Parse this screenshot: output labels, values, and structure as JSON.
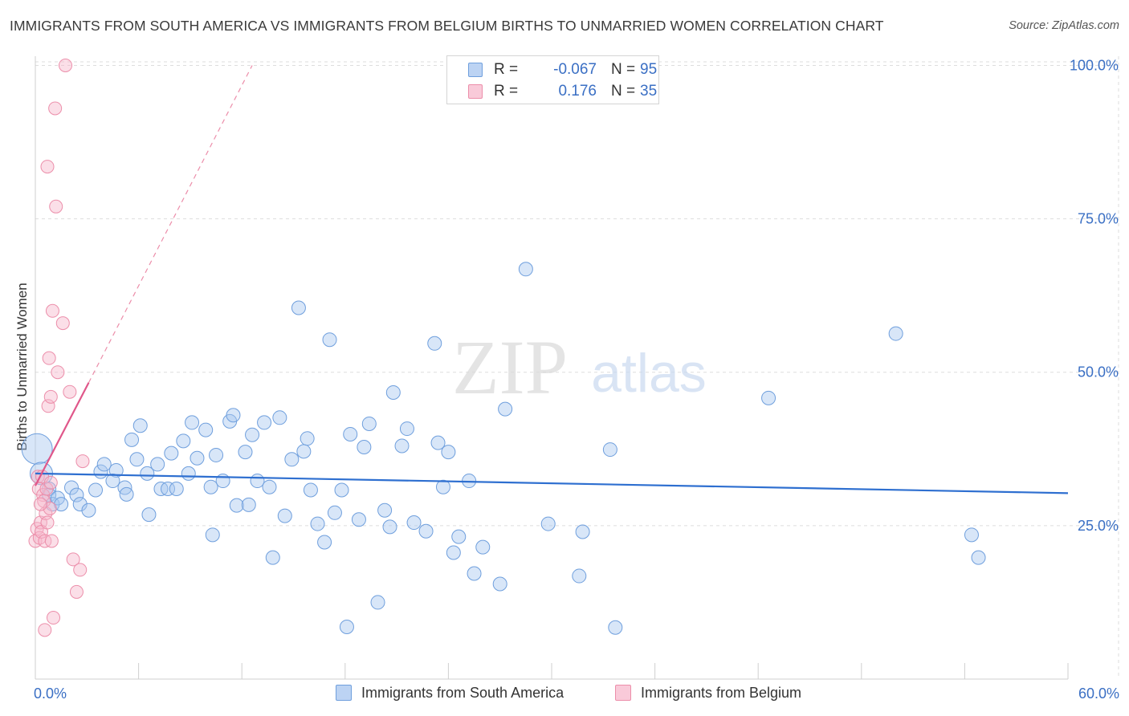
{
  "title": "IMMIGRANTS FROM SOUTH AMERICA VS IMMIGRANTS FROM BELGIUM BIRTHS TO UNMARRIED WOMEN CORRELATION CHART",
  "source": "Source: ZipAtlas.com",
  "watermark": {
    "zip": "ZIP",
    "atlas": "atlas"
  },
  "legend_top": {
    "rows": [
      {
        "r_label": "R =",
        "r_value": "-0.067",
        "n_label": "N =",
        "n_value": "95"
      },
      {
        "r_label": "R =",
        "r_value": "0.176",
        "n_label": "N =",
        "n_value": "35"
      }
    ]
  },
  "legend_bottom": {
    "items": [
      {
        "label": "Immigrants from South America"
      },
      {
        "label": "Immigrants from Belgium"
      }
    ]
  },
  "colors": {
    "blue_fill": "#a9c8f0",
    "blue_stroke": "#6f9fdd",
    "blue_line": "#2e6fd0",
    "pink_fill": "#f7b8cc",
    "pink_stroke": "#ec8eaa",
    "pink_line": "#e0578a",
    "tick_label": "#3a6fc4",
    "grid": "#dddddd"
  },
  "chart_data": {
    "type": "scatter",
    "title": "IMMIGRANTS FROM SOUTH AMERICA VS IMMIGRANTS FROM BELGIUM BIRTHS TO UNMARRIED WOMEN CORRELATION CHART",
    "xlabel": "",
    "ylabel": "Births to Unmarried Women",
    "xlim": [
      0,
      60
    ],
    "ylim": [
      0,
      101.5
    ],
    "x_tick_labels": [
      {
        "value": 0,
        "label": "0.0%"
      },
      {
        "value": 60,
        "label": "60.0%"
      }
    ],
    "x_minor_ticks": [
      0,
      6,
      12,
      18,
      24,
      30,
      36,
      42,
      48,
      54,
      60
    ],
    "y_tick_labels": [
      {
        "value": 25,
        "label": "25.0%"
      },
      {
        "value": 50,
        "label": "50.0%"
      },
      {
        "value": 75,
        "label": "75.0%"
      },
      {
        "value": 100,
        "label": "100.0%"
      }
    ],
    "grid": true,
    "series": [
      {
        "name": "Immigrants from South America",
        "color": "blue",
        "R": -0.067,
        "N": 95,
        "trend": {
          "x": [
            0,
            60
          ],
          "y": [
            33.5,
            30.3
          ],
          "dashed_extension": false
        },
        "points": [
          [
            0.1,
            37.5
          ],
          [
            0.35,
            33.5
          ],
          [
            0.8,
            31
          ],
          [
            0.8,
            30
          ],
          [
            1.0,
            28.5
          ],
          [
            1.3,
            29.5
          ],
          [
            1.5,
            28.5
          ],
          [
            2.1,
            31.2
          ],
          [
            2.4,
            30
          ],
          [
            2.6,
            28.5
          ],
          [
            3.1,
            27.5
          ],
          [
            3.5,
            30.8
          ],
          [
            3.8,
            33.8
          ],
          [
            4.0,
            35
          ],
          [
            4.7,
            34
          ],
          [
            4.5,
            32.3
          ],
          [
            5.2,
            31.2
          ],
          [
            5.3,
            30.1
          ],
          [
            5.6,
            39
          ],
          [
            5.9,
            35.8
          ],
          [
            6.1,
            41.3
          ],
          [
            6.5,
            33.5
          ],
          [
            6.6,
            26.8
          ],
          [
            7.1,
            35
          ],
          [
            7.3,
            31
          ],
          [
            7.7,
            31
          ],
          [
            7.9,
            36.8
          ],
          [
            8.2,
            31
          ],
          [
            8.6,
            38.8
          ],
          [
            8.9,
            33.5
          ],
          [
            9.1,
            41.8
          ],
          [
            9.4,
            36
          ],
          [
            9.9,
            40.6
          ],
          [
            10.2,
            31.3
          ],
          [
            10.3,
            23.5
          ],
          [
            10.5,
            36.5
          ],
          [
            10.9,
            32.3
          ],
          [
            11.3,
            42
          ],
          [
            11.5,
            43
          ],
          [
            11.7,
            28.3
          ],
          [
            12.2,
            37
          ],
          [
            12.4,
            28.4
          ],
          [
            12.6,
            39.8
          ],
          [
            12.9,
            32.3
          ],
          [
            13.3,
            41.8
          ],
          [
            13.6,
            31.3
          ],
          [
            13.8,
            19.8
          ],
          [
            14.2,
            42.6
          ],
          [
            14.5,
            26.6
          ],
          [
            14.9,
            35.8
          ],
          [
            15.3,
            60.5
          ],
          [
            15.6,
            37.1
          ],
          [
            15.8,
            39.2
          ],
          [
            16.0,
            30.8
          ],
          [
            16.4,
            25.3
          ],
          [
            16.8,
            22.3
          ],
          [
            17.1,
            55.3
          ],
          [
            17.4,
            27.1
          ],
          [
            17.8,
            30.8
          ],
          [
            18.1,
            8.5
          ],
          [
            18.3,
            39.9
          ],
          [
            18.8,
            26
          ],
          [
            19.1,
            37.8
          ],
          [
            19.4,
            41.6
          ],
          [
            19.9,
            12.5
          ],
          [
            20.3,
            27.5
          ],
          [
            20.6,
            24.8
          ],
          [
            20.8,
            46.7
          ],
          [
            21.3,
            38
          ],
          [
            21.6,
            40.8
          ],
          [
            22.0,
            25.5
          ],
          [
            22.7,
            24.1
          ],
          [
            23.2,
            54.7
          ],
          [
            23.4,
            38.5
          ],
          [
            23.7,
            31.3
          ],
          [
            24.0,
            37
          ],
          [
            24.3,
            20.6
          ],
          [
            24.6,
            23.2
          ],
          [
            25.2,
            32.3
          ],
          [
            26.0,
            21.5
          ],
          [
            25.5,
            17.2
          ],
          [
            27.0,
            15.5
          ],
          [
            27.3,
            44
          ],
          [
            28.5,
            66.8
          ],
          [
            29.8,
            25.3
          ],
          [
            31.6,
            16.8
          ],
          [
            31.8,
            24
          ],
          [
            33.4,
            37.4
          ],
          [
            33.7,
            8.4
          ],
          [
            42.6,
            45.8
          ],
          [
            50.0,
            56.3
          ],
          [
            54.4,
            23.5
          ],
          [
            54.8,
            19.8
          ]
        ]
      },
      {
        "name": "Immigrants from Belgium",
        "color": "pink",
        "R": 0.176,
        "N": 35,
        "trend": {
          "x": [
            0,
            3.1
          ],
          "y": [
            31.5,
            48.3
          ],
          "dashed_extension": true,
          "dashed_to": {
            "x": 12.6,
            "y": 100
          }
        },
        "points": [
          [
            0.0,
            22.5
          ],
          [
            0.1,
            24.5
          ],
          [
            0.15,
            33
          ],
          [
            0.2,
            31
          ],
          [
            0.25,
            23
          ],
          [
            0.3,
            25.5
          ],
          [
            0.35,
            24
          ],
          [
            0.4,
            33
          ],
          [
            0.45,
            30
          ],
          [
            0.5,
            29
          ],
          [
            0.55,
            22.5
          ],
          [
            0.6,
            27
          ],
          [
            0.65,
            31
          ],
          [
            0.7,
            25.5
          ],
          [
            0.75,
            44.5
          ],
          [
            0.8,
            52.3
          ],
          [
            0.85,
            27.8
          ],
          [
            0.9,
            46
          ],
          [
            0.95,
            22.5
          ],
          [
            1.0,
            60
          ],
          [
            1.05,
            10
          ],
          [
            1.15,
            93
          ],
          [
            1.3,
            50
          ],
          [
            1.6,
            58
          ],
          [
            1.75,
            100
          ],
          [
            2.0,
            46.8
          ],
          [
            2.2,
            19.5
          ],
          [
            2.4,
            14.2
          ],
          [
            2.6,
            17.8
          ],
          [
            2.75,
            35.5
          ],
          [
            1.2,
            77
          ],
          [
            0.7,
            83.5
          ],
          [
            0.55,
            8
          ],
          [
            0.9,
            32
          ],
          [
            0.3,
            28.5
          ]
        ]
      }
    ]
  }
}
